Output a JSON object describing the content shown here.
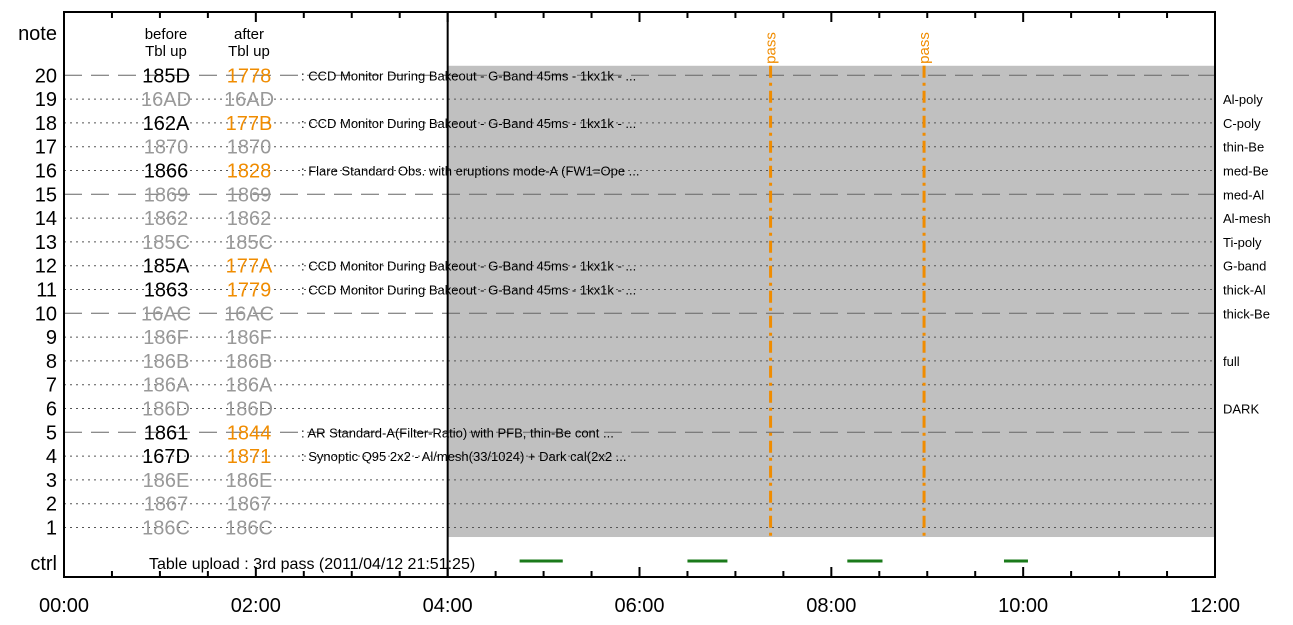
{
  "chart_data": {
    "type": "timeline",
    "x_range": [
      "00:00",
      "12:00"
    ],
    "x_ticks": [
      "00:00",
      "02:00",
      "04:00",
      "06:00",
      "08:00",
      "10:00",
      "12:00"
    ],
    "y_ticks": [
      1,
      2,
      3,
      4,
      5,
      6,
      7,
      8,
      9,
      10,
      11,
      12,
      13,
      14,
      15,
      16,
      17,
      18,
      19,
      20
    ],
    "y_label_top": "note",
    "y_label_bottom": "ctrl",
    "header_before": [
      "before",
      "Tbl up"
    ],
    "header_after": [
      "after",
      "Tbl up"
    ],
    "shaded_region": {
      "x_start": "04:00",
      "x_end": "12:00",
      "y_min": 0.6,
      "y_max": 20.4,
      "color": "#c0c0c0"
    },
    "rows": [
      {
        "n": 20,
        "before": "185D",
        "after": "1778",
        "changed": true,
        "note": ": CCD Monitor During Bakeout - G-Band 45ms - 1kx1k - ...",
        "dashed": true
      },
      {
        "n": 19,
        "before": "16AD",
        "after": "16AD",
        "changed": false,
        "note": ""
      },
      {
        "n": 18,
        "before": "162A",
        "after": "177B",
        "changed": true,
        "note": ": CCD Monitor During Bakeout - G-Band 45ms - 1kx1k - ..."
      },
      {
        "n": 17,
        "before": "1870",
        "after": "1870",
        "changed": false,
        "note": ""
      },
      {
        "n": 16,
        "before": "1866",
        "after": "1828",
        "changed": true,
        "note": ": Flare Standard Obs. with eruptions mode-A (FW1=Ope ..."
      },
      {
        "n": 15,
        "before": "1869",
        "after": "1869",
        "changed": false,
        "note": "",
        "dashed": true
      },
      {
        "n": 14,
        "before": "1862",
        "after": "1862",
        "changed": false,
        "note": ""
      },
      {
        "n": 13,
        "before": "185C",
        "after": "185C",
        "changed": false,
        "note": ""
      },
      {
        "n": 12,
        "before": "185A",
        "after": "177A",
        "changed": true,
        "note": ": CCD Monitor During Bakeout - G-Band 45ms - 1kx1k - ..."
      },
      {
        "n": 11,
        "before": "1863",
        "after": "1779",
        "changed": true,
        "note": ": CCD Monitor During Bakeout - G-Band 45ms - 1kx1k - ..."
      },
      {
        "n": 10,
        "before": "16AC",
        "after": "16AC",
        "changed": false,
        "note": "",
        "dashed": true
      },
      {
        "n": 9,
        "before": "186F",
        "after": "186F",
        "changed": false,
        "note": ""
      },
      {
        "n": 8,
        "before": "186B",
        "after": "186B",
        "changed": false,
        "note": ""
      },
      {
        "n": 7,
        "before": "186A",
        "after": "186A",
        "changed": false,
        "note": ""
      },
      {
        "n": 6,
        "before": "186D",
        "after": "186D",
        "changed": false,
        "note": ""
      },
      {
        "n": 5,
        "before": "1861",
        "after": "1844",
        "changed": true,
        "note": ": AR Standard-A(Filter-Ratio) with PFB, thin-Be cont ...",
        "dashed": true
      },
      {
        "n": 4,
        "before": "167D",
        "after": "1871",
        "changed": true,
        "note": ": Synoptic Q95 2x2 - Al/mesh(33/1024) + Dark cal(2x2 ..."
      },
      {
        "n": 3,
        "before": "186E",
        "after": "186E",
        "changed": false,
        "note": ""
      },
      {
        "n": 2,
        "before": "1867",
        "after": "1867",
        "changed": false,
        "note": ""
      },
      {
        "n": 1,
        "before": "186C",
        "after": "186C",
        "changed": false,
        "note": ""
      }
    ],
    "filter_labels": [
      {
        "y": 19,
        "text": "Al-poly"
      },
      {
        "y": 18,
        "text": "C-poly"
      },
      {
        "y": 17,
        "text": "thin-Be"
      },
      {
        "y": 16,
        "text": "med-Be"
      },
      {
        "y": 15,
        "text": "med-Al"
      },
      {
        "y": 14,
        "text": "Al-mesh"
      },
      {
        "y": 13,
        "text": "Ti-poly"
      },
      {
        "y": 12,
        "text": "G-band"
      },
      {
        "y": 11,
        "text": "thick-Al"
      },
      {
        "y": 10,
        "text": "thick-Be"
      },
      {
        "y": 8,
        "text": "full"
      },
      {
        "y": 6,
        "text": "DARK"
      }
    ],
    "pass_markers": [
      {
        "time": "07:22",
        "label": "pass"
      },
      {
        "time": "08:58",
        "label": "pass"
      }
    ],
    "ctrl_text": "Table upload : 3rd pass (2011/04/12 21:51:25)",
    "ctrl_bars": [
      {
        "start": "04:45",
        "end": "05:12"
      },
      {
        "start": "06:30",
        "end": "06:55"
      },
      {
        "start": "08:10",
        "end": "08:32"
      },
      {
        "start": "09:48",
        "end": "10:03"
      }
    ],
    "colors": {
      "changed": "#f08c00",
      "unchanged": "#999999",
      "normal": "#000000",
      "pass": "#f08c00",
      "ctrl_bar": "#1a7a1a",
      "shade": "#c0c0c0"
    }
  }
}
